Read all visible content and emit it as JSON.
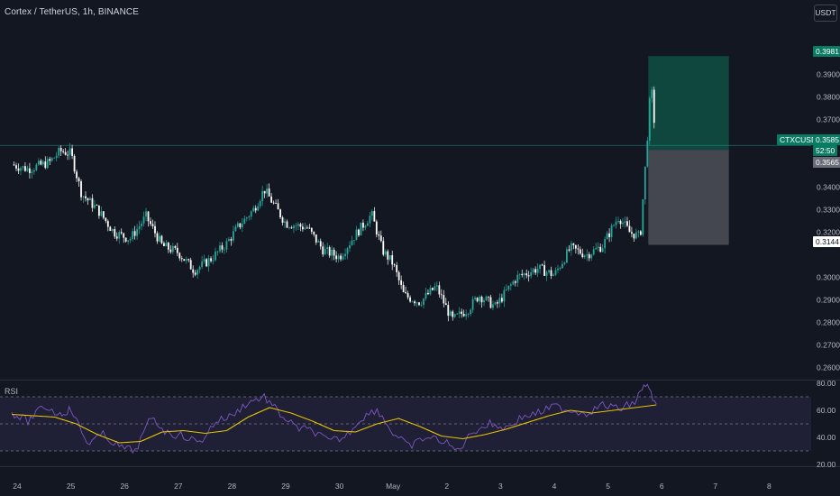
{
  "header": {
    "title": "Cortex / TetherUS, 1h, BINANCE",
    "currency_button": "USDT",
    "symbol_tag": "CTXCUSDT"
  },
  "price_tags": {
    "target": "0.3981",
    "last": "0.3585",
    "countdown": "52:50",
    "entry": "0.3565",
    "stop": "0.3144"
  },
  "rsi": {
    "label": "RSI",
    "ticks": [
      "80.00",
      "60.00",
      "40.00",
      "20.00"
    ]
  },
  "colors": {
    "background": "#131722",
    "up": "#26a69a",
    "down": "#ffffff",
    "rsi_line": "#7e57c2",
    "rsi_ma": "#e6c200",
    "profit_zone": "#0f4a40",
    "loss_zone": "#4a4c54"
  },
  "chart_data": [
    {
      "type": "candlestick",
      "title": "Cortex / TetherUS, 1h, BINANCE",
      "y_ticks": [
        "0.3981",
        "0.3900",
        "0.3800",
        "0.3700",
        "0.3585",
        "0.3400",
        "0.3300",
        "0.3200",
        "0.3144",
        "0.3000",
        "0.2900",
        "0.2800",
        "0.2700",
        "0.2600"
      ],
      "x_ticks": [
        "24",
        "25",
        "26",
        "27",
        "28",
        "29",
        "30",
        "May",
        "2",
        "3",
        "4",
        "5",
        "6",
        "7",
        "8"
      ],
      "ylim": [
        0.255,
        0.405
      ],
      "close_path": {
        "x": [
          23.9,
          24.2,
          24.6,
          24.8,
          25.0,
          25.2,
          25.5,
          25.8,
          26.1,
          26.4,
          26.7,
          27.0,
          27.3,
          27.6,
          27.9,
          28.1,
          28.4,
          28.6,
          29.0,
          29.4,
          29.7,
          30.0,
          30.3,
          30.6,
          30.8,
          31.0,
          31.2,
          31.5,
          31.8,
          32.1,
          32.4,
          32.6,
          32.9,
          33.3,
          33.7,
          34.0,
          34.3,
          34.6,
          34.9,
          35.1,
          35.2,
          35.4,
          35.6,
          35.7,
          35.8,
          35.9
        ],
        "y": [
          0.35,
          0.348,
          0.351,
          0.356,
          0.355,
          0.337,
          0.33,
          0.32,
          0.317,
          0.327,
          0.314,
          0.311,
          0.303,
          0.308,
          0.315,
          0.322,
          0.33,
          0.339,
          0.324,
          0.322,
          0.312,
          0.309,
          0.319,
          0.328,
          0.312,
          0.306,
          0.292,
          0.289,
          0.296,
          0.281,
          0.286,
          0.292,
          0.287,
          0.3,
          0.304,
          0.301,
          0.313,
          0.31,
          0.314,
          0.323,
          0.327,
          0.32,
          0.318,
          0.351,
          0.386,
          0.358
        ]
      },
      "position": {
        "target": 0.3981,
        "entry": 0.3565,
        "stop": 0.3144,
        "last": 0.3585
      }
    },
    {
      "type": "line",
      "title": "RSI",
      "y_ticks": [
        "80.00",
        "60.00",
        "40.00",
        "20.00"
      ],
      "ylim": [
        20,
        80
      ],
      "bands": [
        70,
        50,
        30
      ],
      "series": [
        {
          "x": [
            23.9,
            24.2,
            24.5,
            24.8,
            25.0,
            25.3,
            25.6,
            25.9,
            26.2,
            26.5,
            26.8,
            27.1,
            27.4,
            27.7,
            28.0,
            28.3,
            28.6,
            28.9,
            29.2,
            29.5,
            29.8,
            30.1,
            30.4,
            30.7,
            31.0,
            31.3,
            31.6,
            31.9,
            32.2,
            32.5,
            32.8,
            33.1,
            33.4,
            33.7,
            34.0,
            34.3,
            34.6,
            34.9,
            35.2,
            35.5,
            35.7,
            35.9
          ],
          "values": [
            58,
            52,
            63,
            57,
            61,
            36,
            42,
            33,
            30,
            55,
            43,
            41,
            36,
            52,
            56,
            66,
            70,
            57,
            47,
            45,
            37,
            40,
            54,
            61,
            43,
            33,
            40,
            38,
            30,
            45,
            50,
            47,
            55,
            58,
            63,
            60,
            58,
            64,
            61,
            66,
            80,
            64
          ]
        },
        {
          "x": [
            23.9,
            24.3,
            24.7,
            25.1,
            25.5,
            25.9,
            26.3,
            26.7,
            27.1,
            27.5,
            27.9,
            28.3,
            28.7,
            29.1,
            29.5,
            29.9,
            30.3,
            30.7,
            31.1,
            31.5,
            31.9,
            32.3,
            32.7,
            33.1,
            33.5,
            33.9,
            34.3,
            34.7,
            35.1,
            35.5,
            35.9
          ],
          "values": [
            57,
            56,
            55,
            50,
            42,
            36,
            37,
            44,
            45,
            43,
            45,
            55,
            62,
            58,
            52,
            45,
            44,
            50,
            54,
            48,
            41,
            39,
            42,
            46,
            51,
            56,
            60,
            58,
            60,
            62,
            64
          ]
        }
      ]
    }
  ]
}
